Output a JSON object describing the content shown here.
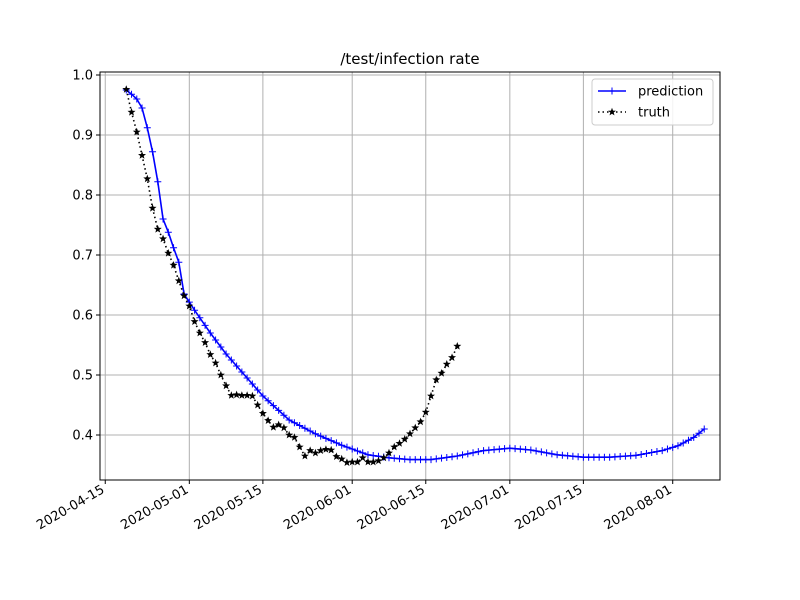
{
  "chart_data": {
    "type": "line",
    "title": "/test/infection rate",
    "xlabel": "",
    "ylabel": "",
    "x_axis": {
      "type": "date",
      "range": [
        "2020-04-14",
        "2020-08-10"
      ],
      "ticks": [
        "2020-04-15",
        "2020-05-01",
        "2020-05-15",
        "2020-06-01",
        "2020-06-15",
        "2020-07-01",
        "2020-07-15",
        "2020-08-01"
      ]
    },
    "y_axis": {
      "range": [
        0.325,
        1.005
      ],
      "ticks": [
        0.4,
        0.5,
        0.6,
        0.7,
        0.8,
        0.9,
        1.0
      ],
      "tick_labels": [
        "0.4",
        "0.5",
        "0.6",
        "0.7",
        "0.8",
        "0.9",
        "1.0"
      ]
    },
    "grid": true,
    "legend": {
      "placement": "top-right"
    },
    "series": [
      {
        "name": "prediction",
        "color": "#0000ff",
        "linestyle": "solid",
        "marker": "plus",
        "start": "2020-04-19",
        "end": "2020-08-07",
        "keypoints": [
          [
            "2020-04-19",
            0.975
          ],
          [
            "2020-04-20",
            0.968
          ],
          [
            "2020-04-21",
            0.96
          ],
          [
            "2020-04-22",
            0.945
          ],
          [
            "2020-04-23",
            0.912
          ],
          [
            "2020-04-24",
            0.872
          ],
          [
            "2020-04-25",
            0.822
          ],
          [
            "2020-04-26",
            0.76
          ],
          [
            "2020-04-27",
            0.738
          ],
          [
            "2020-04-28",
            0.712
          ],
          [
            "2020-04-29",
            0.688
          ],
          [
            "2020-04-30",
            0.635
          ],
          [
            "2020-05-02",
            0.608
          ],
          [
            "2020-05-05",
            0.57
          ],
          [
            "2020-05-08",
            0.535
          ],
          [
            "2020-05-12",
            0.495
          ],
          [
            "2020-05-15",
            0.465
          ],
          [
            "2020-05-20",
            0.425
          ],
          [
            "2020-05-25",
            0.402
          ],
          [
            "2020-05-30",
            0.383
          ],
          [
            "2020-06-04",
            0.367
          ],
          [
            "2020-06-08",
            0.362
          ],
          [
            "2020-06-12",
            0.359
          ],
          [
            "2020-06-16",
            0.359
          ],
          [
            "2020-06-21",
            0.365
          ],
          [
            "2020-06-26",
            0.374
          ],
          [
            "2020-07-01",
            0.378
          ],
          [
            "2020-07-05",
            0.375
          ],
          [
            "2020-07-10",
            0.367
          ],
          [
            "2020-07-15",
            0.363
          ],
          [
            "2020-07-20",
            0.363
          ],
          [
            "2020-07-25",
            0.366
          ],
          [
            "2020-07-30",
            0.374
          ],
          [
            "2020-08-02",
            0.382
          ],
          [
            "2020-08-05",
            0.396
          ],
          [
            "2020-08-07",
            0.41
          ]
        ]
      },
      {
        "name": "truth",
        "color": "#000000",
        "linestyle": "dotted",
        "marker": "star",
        "start": "2020-04-19",
        "points": [
          [
            "2020-04-19",
            0.976
          ],
          [
            "2020-04-20",
            0.938
          ],
          [
            "2020-04-21",
            0.905
          ],
          [
            "2020-04-22",
            0.866
          ],
          [
            "2020-04-23",
            0.827
          ],
          [
            "2020-04-24",
            0.778
          ],
          [
            "2020-04-25",
            0.743
          ],
          [
            "2020-04-26",
            0.727
          ],
          [
            "2020-04-27",
            0.703
          ],
          [
            "2020-04-28",
            0.683
          ],
          [
            "2020-04-29",
            0.657
          ],
          [
            "2020-04-30",
            0.632
          ],
          [
            "2020-05-01",
            0.615
          ],
          [
            "2020-05-02",
            0.589
          ],
          [
            "2020-05-03",
            0.57
          ],
          [
            "2020-05-04",
            0.554
          ],
          [
            "2020-05-05",
            0.534
          ],
          [
            "2020-05-06",
            0.52
          ],
          [
            "2020-05-07",
            0.5
          ],
          [
            "2020-05-08",
            0.482
          ],
          [
            "2020-05-09",
            0.466
          ],
          [
            "2020-05-10",
            0.467
          ],
          [
            "2020-05-11",
            0.466
          ],
          [
            "2020-05-12",
            0.466
          ],
          [
            "2020-05-13",
            0.465
          ],
          [
            "2020-05-14",
            0.45
          ],
          [
            "2020-05-15",
            0.436
          ],
          [
            "2020-05-16",
            0.424
          ],
          [
            "2020-05-17",
            0.413
          ],
          [
            "2020-05-18",
            0.417
          ],
          [
            "2020-05-19",
            0.412
          ],
          [
            "2020-05-20",
            0.4
          ],
          [
            "2020-05-21",
            0.396
          ],
          [
            "2020-05-22",
            0.38
          ],
          [
            "2020-05-23",
            0.365
          ],
          [
            "2020-05-24",
            0.374
          ],
          [
            "2020-05-25",
            0.37
          ],
          [
            "2020-05-26",
            0.374
          ],
          [
            "2020-05-27",
            0.376
          ],
          [
            "2020-05-28",
            0.375
          ],
          [
            "2020-05-29",
            0.364
          ],
          [
            "2020-05-30",
            0.36
          ],
          [
            "2020-05-31",
            0.354
          ],
          [
            "2020-06-01",
            0.355
          ],
          [
            "2020-06-02",
            0.355
          ],
          [
            "2020-06-03",
            0.362
          ],
          [
            "2020-06-04",
            0.355
          ],
          [
            "2020-06-05",
            0.355
          ],
          [
            "2020-06-06",
            0.357
          ],
          [
            "2020-06-07",
            0.362
          ],
          [
            "2020-06-08",
            0.37
          ],
          [
            "2020-06-09",
            0.38
          ],
          [
            "2020-06-10",
            0.386
          ],
          [
            "2020-06-11",
            0.393
          ],
          [
            "2020-06-12",
            0.402
          ],
          [
            "2020-06-13",
            0.412
          ],
          [
            "2020-06-14",
            0.422
          ],
          [
            "2020-06-15",
            0.438
          ],
          [
            "2020-06-16",
            0.465
          ],
          [
            "2020-06-17",
            0.492
          ],
          [
            "2020-06-18",
            0.503
          ],
          [
            "2020-06-19",
            0.518
          ],
          [
            "2020-06-20",
            0.529
          ],
          [
            "2020-06-21",
            0.548
          ]
        ]
      }
    ]
  }
}
